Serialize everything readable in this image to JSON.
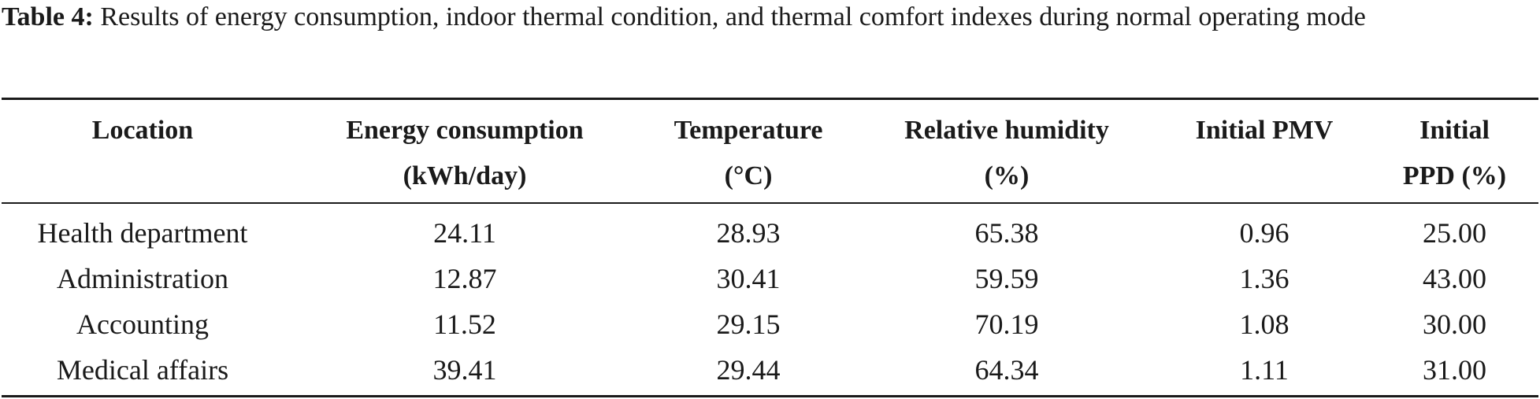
{
  "caption": {
    "label": "Table 4:",
    "text": "Results of energy consumption, indoor thermal condition, and thermal comfort indexes during normal operating mode"
  },
  "table": {
    "headers": [
      {
        "line1": "Location",
        "line2": ""
      },
      {
        "line1": "Energy consumption",
        "line2": "(kWh/day)"
      },
      {
        "line1": "Temperature",
        "line2": "(°C)"
      },
      {
        "line1": "Relative humidity",
        "line2": "(%)"
      },
      {
        "line1": "Initial PMV",
        "line2": ""
      },
      {
        "line1": "Initial",
        "line2": "PPD (%)"
      }
    ],
    "rows": [
      [
        "Health department",
        "24.11",
        "28.93",
        "65.38",
        "0.96",
        "25.00"
      ],
      [
        "Administration",
        "12.87",
        "30.41",
        "59.59",
        "1.36",
        "43.00"
      ],
      [
        "Accounting",
        "11.52",
        "29.15",
        "70.19",
        "1.08",
        "30.00"
      ],
      [
        "Medical affairs",
        "39.41",
        "29.44",
        "64.34",
        "1.11",
        "31.00"
      ]
    ]
  }
}
